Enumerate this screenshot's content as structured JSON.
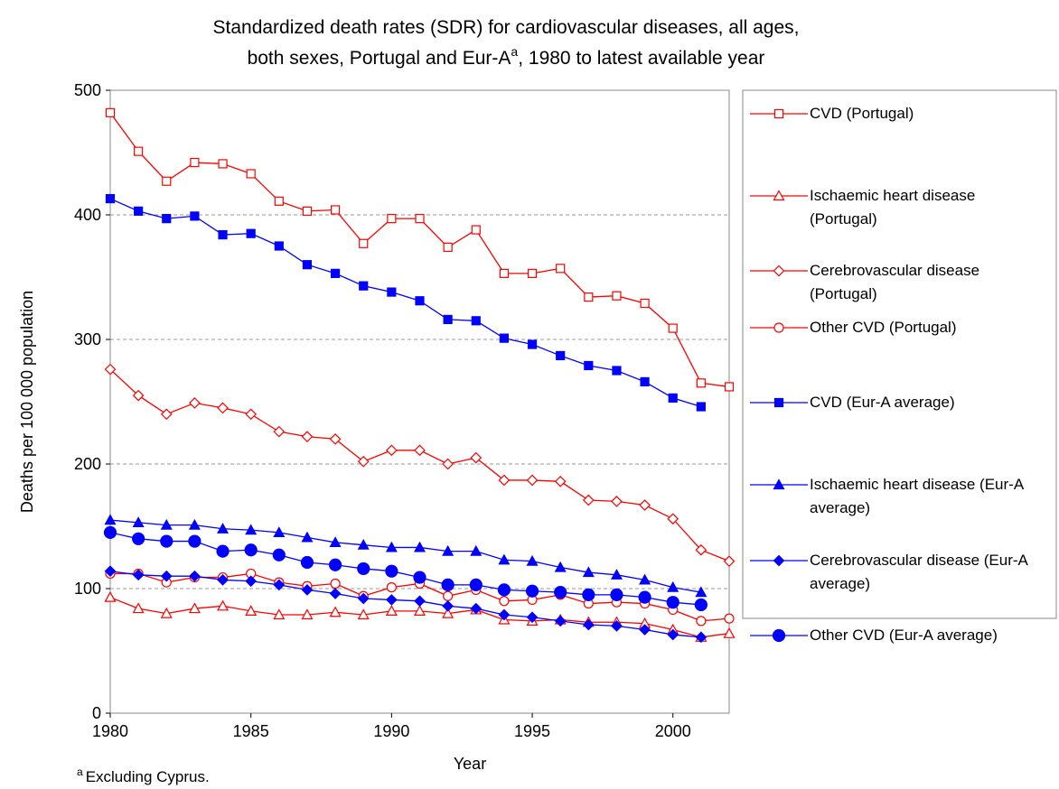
{
  "chart_data": {
    "type": "line",
    "title": [
      "Standardized death rates (SDR) for cardiovascular diseases, all ages,",
      "both sexes, Portugal and Eur-A",
      "a",
      ", 1980 to latest available year"
    ],
    "x_label": "Year",
    "y_label": "Deaths per 100 000 population",
    "footnote": {
      "marker": "a",
      "text": "Excluding Cyprus."
    },
    "x": [
      1980,
      1981,
      1982,
      1983,
      1984,
      1985,
      1986,
      1987,
      1988,
      1989,
      1990,
      1991,
      1992,
      1993,
      1994,
      1995,
      1996,
      1997,
      1998,
      1999,
      2000,
      2001,
      2002
    ],
    "xlim": [
      1980,
      2002
    ],
    "xticks": [
      1980,
      1985,
      1990,
      1995,
      2000
    ],
    "ylim": [
      0,
      500
    ],
    "yticks": [
      0,
      100,
      200,
      300,
      400,
      500
    ],
    "grid": true,
    "series": [
      {
        "name": "CVD (Portugal)",
        "color": "#ff0000",
        "marker": "square-open",
        "values": [
          482,
          451,
          427,
          442,
          441,
          433,
          411,
          403,
          404,
          377,
          397,
          397,
          374,
          388,
          353,
          353,
          357,
          334,
          335,
          329,
          309,
          265,
          262
        ]
      },
      {
        "name": "Ischaemic heart disease (Portugal)",
        "color": "#ff0000",
        "marker": "triangle-open",
        "values": [
          93,
          84,
          80,
          84,
          86,
          82,
          79,
          79,
          81,
          79,
          82,
          82,
          80,
          83,
          75,
          74,
          75,
          73,
          73,
          72,
          67,
          61,
          64
        ]
      },
      {
        "name": "Cerebrovascular disease (Portugal)",
        "color": "#ff0000",
        "marker": "diamond-open",
        "values": [
          276,
          255,
          240,
          249,
          245,
          240,
          226,
          222,
          220,
          202,
          211,
          211,
          200,
          205,
          187,
          187,
          186,
          171,
          170,
          167,
          156,
          131,
          122
        ]
      },
      {
        "name": "Other CVD (Portugal)",
        "color": "#ff0000",
        "marker": "circle-open",
        "values": [
          112,
          112,
          105,
          109,
          109,
          112,
          105,
          102,
          104,
          94,
          101,
          104,
          94,
          99,
          90,
          91,
          95,
          88,
          89,
          88,
          83,
          74,
          76
        ]
      },
      {
        "name": "CVD (Eur-A average)",
        "color": "#0000ff",
        "marker": "square",
        "values": [
          413,
          403,
          397,
          399,
          384,
          385,
          375,
          360,
          353,
          343,
          338,
          331,
          316,
          315,
          301,
          296,
          287,
          279,
          275,
          266,
          253,
          246,
          null
        ]
      },
      {
        "name": "Ischaemic heart disease (Eur-A average)",
        "color": "#0000ff",
        "marker": "triangle",
        "values": [
          155,
          153,
          151,
          151,
          148,
          147,
          145,
          141,
          137,
          135,
          133,
          133,
          130,
          130,
          123,
          122,
          117,
          113,
          111,
          107,
          101,
          97,
          null
        ]
      },
      {
        "name": "Cerebrovascular disease (Eur-A average)",
        "color": "#0000ff",
        "marker": "diamond",
        "values": [
          114,
          111,
          110,
          110,
          107,
          106,
          103,
          99,
          96,
          92,
          91,
          90,
          86,
          84,
          79,
          77,
          74,
          71,
          70,
          67,
          63,
          61,
          null
        ]
      },
      {
        "name": "Other CVD (Eur-A average)",
        "color": "#0000ff",
        "marker": "circle",
        "values": [
          145,
          140,
          138,
          138,
          130,
          131,
          127,
          121,
          119,
          116,
          114,
          109,
          103,
          103,
          99,
          98,
          97,
          95,
          95,
          93,
          89,
          87,
          null
        ]
      }
    ]
  }
}
